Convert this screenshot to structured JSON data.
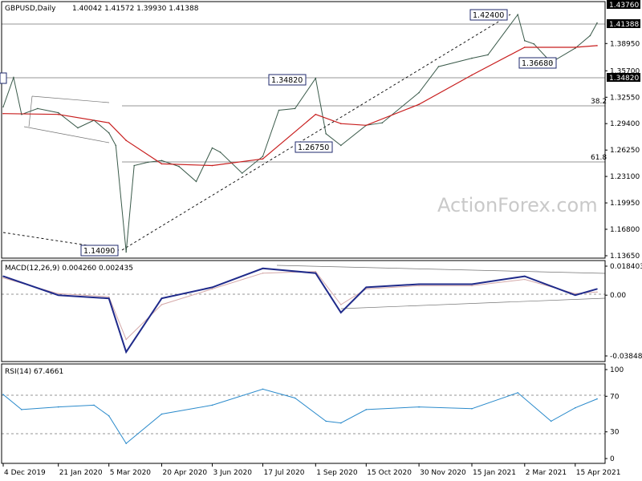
{
  "header": {
    "title": "GBPUSD,Daily",
    "ohlc": "1.40042 1.41572 1.39930 1.41388"
  },
  "watermark": "ActionForex.com",
  "colors": {
    "price": "#3a5a4a",
    "ma": "#c81e1e",
    "macd": "#1f2a8a",
    "signal": "#d4a8a8",
    "rsi": "#2a8acb",
    "label_border": "#1f2a6e"
  },
  "chart_data": [
    {
      "type": "line",
      "title": "GBPUSD,Daily",
      "ylim": [
        1.1365,
        1.4376
      ],
      "y_ticks": [
        "1.43760",
        "1.41388",
        "1.38950",
        "1.35700",
        "1.32550",
        "1.29400",
        "1.26250",
        "1.23100",
        "1.19950",
        "1.16800",
        "1.13650"
      ],
      "x_ticks": [
        "4 Dec 2019",
        "21 Jan 2020",
        "5 Mar 2020",
        "20 Apr 2020",
        "3 Jun 2020",
        "17 Jul 2020",
        "1 Sep 2020",
        "15 Oct 2020",
        "30 Nov 2020",
        "15 Jan 2021",
        "2 Mar 2021",
        "15 Apr 2021"
      ],
      "series": [
        {
          "name": "",
          "x": [
            "2019-12-04",
            "2019-12-13",
            "2019-12-20",
            "2020-01-03",
            "2020-01-21",
            "2020-02-07",
            "2020-02-21",
            "2020-03-05",
            "2020-03-11",
            "2020-03-20",
            "2020-03-27",
            "2020-04-08",
            "2020-04-20",
            "2020-05-05",
            "2020-05-20",
            "2020-06-03",
            "2020-06-10",
            "2020-06-29",
            "2020-07-17",
            "2020-07-31",
            "2020-08-14",
            "2020-09-01",
            "2020-09-10",
            "2020-09-23",
            "2020-10-15",
            "2020-10-29",
            "2020-11-30",
            "2020-12-17",
            "2021-01-15",
            "2021-01-29",
            "2021-02-24",
            "2021-03-02",
            "2021-03-10",
            "2021-03-25",
            "2021-04-15",
            "2021-04-28",
            "2021-05-04"
          ],
          "values": [
            1.314,
            1.349,
            1.305,
            1.312,
            1.307,
            1.289,
            1.298,
            1.283,
            1.268,
            1.141,
            1.244,
            1.248,
            1.25,
            1.243,
            1.225,
            1.265,
            1.26,
            1.235,
            1.255,
            1.31,
            1.312,
            1.348,
            1.282,
            1.268,
            1.292,
            1.295,
            1.331,
            1.362,
            1.372,
            1.376,
            1.424,
            1.393,
            1.389,
            1.367,
            1.384,
            1.399,
            1.414
          ]
        },
        {
          "name": "",
          "x": [
            "2019-12-04",
            "2020-01-21",
            "2020-03-05",
            "2020-03-20",
            "2020-04-20",
            "2020-06-03",
            "2020-07-17",
            "2020-09-01",
            "2020-09-23",
            "2020-10-15",
            "2020-11-30",
            "2021-01-15",
            "2021-03-02",
            "2021-04-15",
            "2021-05-04"
          ],
          "values": [
            1.306,
            1.305,
            1.295,
            1.274,
            1.246,
            1.244,
            1.252,
            1.305,
            1.294,
            1.292,
            1.317,
            1.352,
            1.385,
            1.385,
            1.387
          ]
        }
      ],
      "annotations": [
        "1.42400",
        "1.34820",
        "1.36680",
        "1.26750",
        "1.14090",
        "38.2",
        "61.8",
        "1.34820",
        "1.41388",
        "1.43760"
      ],
      "grid": false
    },
    {
      "type": "line",
      "title": "MACD(12,26,9) 0.004260 0.002435",
      "ylim": [
        -0.038483,
        0.018403
      ],
      "y_ticks": [
        "0.018403",
        "0.00",
        "-0.038483"
      ],
      "series": [
        {
          "name": "",
          "x": [
            "2019-12-04",
            "2020-01-21",
            "2020-03-05",
            "2020-03-20",
            "2020-04-20",
            "2020-06-03",
            "2020-07-17",
            "2020-09-01",
            "2020-09-23",
            "2020-10-15",
            "2020-11-30",
            "2021-01-15",
            "2021-03-02",
            "2021-04-15",
            "2021-05-04"
          ],
          "values": [
            0.012,
            0.0,
            -0.002,
            -0.036,
            -0.002,
            0.005,
            0.017,
            0.014,
            -0.011,
            0.005,
            0.007,
            0.007,
            0.012,
            0.0,
            0.004
          ]
        },
        {
          "name": "",
          "x": [
            "2019-12-04",
            "2020-01-21",
            "2020-03-05",
            "2020-03-20",
            "2020-04-20",
            "2020-06-03",
            "2020-07-17",
            "2020-09-01",
            "2020-09-23",
            "2020-10-15",
            "2020-11-30",
            "2021-01-15",
            "2021-03-02",
            "2021-04-15",
            "2021-05-04"
          ],
          "values": [
            0.011,
            0.001,
            -0.001,
            -0.028,
            -0.006,
            0.004,
            0.014,
            0.015,
            -0.006,
            0.004,
            0.006,
            0.006,
            0.01,
            0.001,
            0.002
          ]
        }
      ]
    },
    {
      "type": "line",
      "title": "RSI(14) 67.4661",
      "ylim": [
        0,
        100
      ],
      "y_ticks": [
        "100",
        "70",
        "30",
        "0"
      ],
      "series": [
        {
          "name": "",
          "x": [
            "2019-12-04",
            "2019-12-20",
            "2020-01-21",
            "2020-02-21",
            "2020-03-05",
            "2020-03-20",
            "2020-04-20",
            "2020-06-03",
            "2020-07-17",
            "2020-08-14",
            "2020-09-10",
            "2020-09-23",
            "2020-10-15",
            "2020-11-30",
            "2021-01-15",
            "2021-02-24",
            "2021-03-25",
            "2021-04-15",
            "2021-05-04"
          ],
          "values": [
            72,
            55,
            58,
            60,
            48,
            17,
            50,
            60,
            78,
            68,
            42,
            40,
            55,
            58,
            56,
            74,
            42,
            57,
            67
          ]
        }
      ]
    }
  ]
}
